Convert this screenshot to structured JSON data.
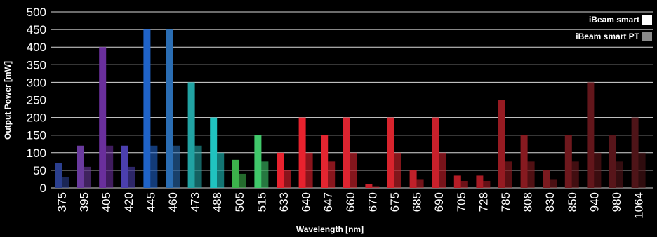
{
  "chart_data": {
    "type": "bar",
    "xlabel": "Wavelength [nm]",
    "ylabel": "Output Power [mW]",
    "ylim": [
      0,
      500
    ],
    "yticks": [
      0,
      50,
      100,
      150,
      200,
      250,
      300,
      350,
      400,
      450,
      500
    ],
    "grid": true,
    "legend_position": "top-right",
    "categories": [
      "375",
      "395",
      "405",
      "420",
      "445",
      "460",
      "473",
      "488",
      "505",
      "515",
      "633",
      "640",
      "647",
      "660",
      "670",
      "675",
      "685",
      "690",
      "705",
      "728",
      "785",
      "808",
      "830",
      "850",
      "940",
      "980",
      "1064"
    ],
    "colors": [
      "#2b3f8f",
      "#6a3a9e",
      "#6a2f9c",
      "#4b3fae",
      "#1f63c8",
      "#2a6db3",
      "#21a3a3",
      "#20c3c0",
      "#3cb24b",
      "#40c86a",
      "#e8222e",
      "#e8222e",
      "#e32530",
      "#dc2430",
      "#c8202b",
      "#d8242d",
      "#c0202a",
      "#c8202b",
      "#b51d26",
      "#a81b24",
      "#961b22",
      "#861a20",
      "#7b1a1f",
      "#6e181d",
      "#62161b",
      "#57151a",
      "#4e1418"
    ],
    "series": [
      {
        "name": "iBeam smart",
        "values": [
          70,
          120,
          400,
          120,
          450,
          450,
          300,
          200,
          80,
          150,
          100,
          200,
          150,
          200,
          10,
          200,
          50,
          200,
          35,
          35,
          250,
          150,
          50,
          150,
          300,
          150,
          200
        ]
      },
      {
        "name": "iBeam smart PT",
        "values": [
          30,
          60,
          120,
          60,
          120,
          120,
          120,
          100,
          40,
          75,
          50,
          100,
          75,
          100,
          5,
          100,
          25,
          100,
          20,
          20,
          75,
          75,
          25,
          75,
          100,
          75,
          100
        ]
      }
    ]
  },
  "legend": {
    "items": [
      {
        "label": "iBeam smart",
        "swatch_color": "#ffffff"
      },
      {
        "label": "iBeam smart PT",
        "swatch_color": "#8a8a8a"
      }
    ]
  },
  "style": {
    "background": "#000000",
    "text_color": "#ffffff",
    "grid_color": "#ffffff"
  }
}
